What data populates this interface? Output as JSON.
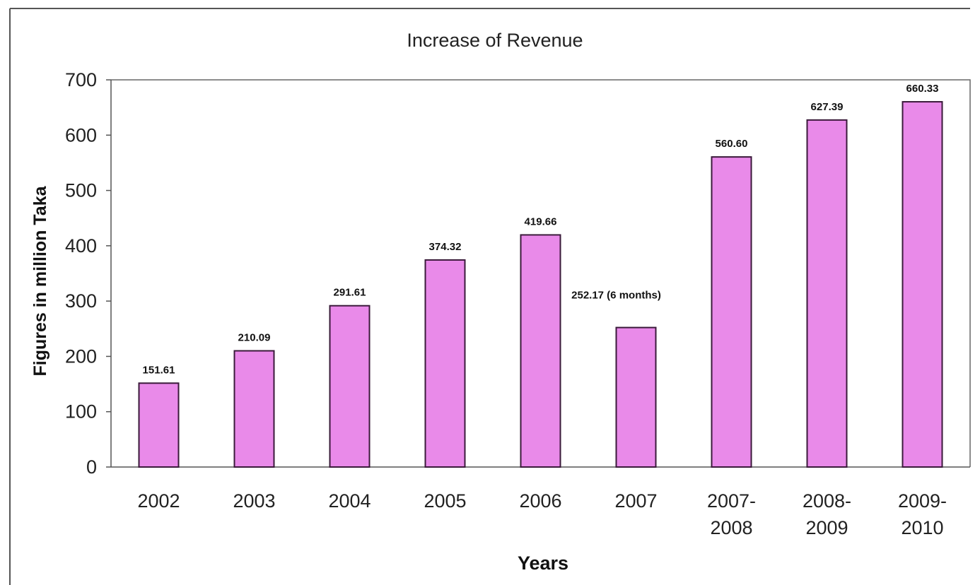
{
  "chart_data": {
    "type": "bar",
    "title": "Increase of Revenue",
    "xlabel": "Years",
    "ylabel": "Figures in million Taka",
    "categories": [
      [
        "2002"
      ],
      [
        "2003"
      ],
      [
        "2004"
      ],
      [
        "2005"
      ],
      [
        "2006"
      ],
      [
        "2007"
      ],
      [
        "2007-",
        "2008"
      ],
      [
        "2008-",
        "2009"
      ],
      [
        "2009-",
        "2010"
      ]
    ],
    "values": [
      151.61,
      210.09,
      291.61,
      374.32,
      419.66,
      252.17,
      560.6,
      627.39,
      660.33
    ],
    "data_labels": [
      "151.61",
      "210.09",
      "291.61",
      "374.32",
      "419.66",
      "252.17 (6 months)",
      "560.60",
      "627.39",
      "660.33"
    ],
    "ylim": [
      0,
      700
    ],
    "yticks": [
      0,
      100,
      200,
      300,
      400,
      500,
      600,
      700
    ],
    "grid": false,
    "legend": "none",
    "bar_color": "#e98ae9"
  }
}
